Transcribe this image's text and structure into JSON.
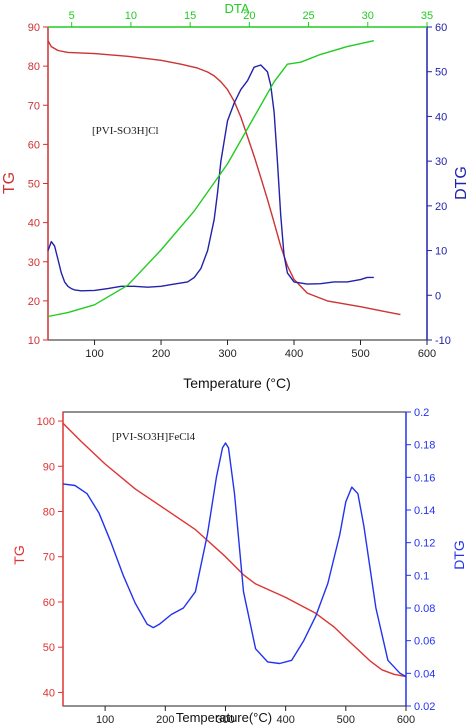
{
  "chart_data": [
    {
      "type": "line",
      "annotation": "[PVI-SO3H]Cl",
      "xlabel": "Temperature (°C)",
      "xlim": [
        30,
        600
      ],
      "xticks": [
        100,
        200,
        300,
        400,
        500,
        600
      ],
      "top_axis": {
        "label": "DTA",
        "color": "#22cc22",
        "lim": [
          3,
          35
        ],
        "ticks": [
          5,
          10,
          15,
          20,
          25,
          30,
          35
        ]
      },
      "left_axis": {
        "label": "TG",
        "color": "#cc3333",
        "lim": [
          10,
          90
        ],
        "ticks": [
          10,
          20,
          30,
          40,
          50,
          60,
          70,
          80,
          90
        ]
      },
      "right_axis": {
        "label": "DTG",
        "color": "#2222aa",
        "lim": [
          -10,
          60
        ],
        "ticks": [
          -10,
          0,
          10,
          20,
          30,
          40,
          50,
          60
        ]
      },
      "series": [
        {
          "axis": "left",
          "color": "#cc3333",
          "x": [
            30,
            35,
            45,
            60,
            100,
            150,
            200,
            230,
            255,
            270,
            280,
            290,
            300,
            310,
            320,
            330,
            340,
            350,
            360,
            370,
            380,
            390,
            400,
            420,
            450,
            500,
            530,
            560
          ],
          "y": [
            86.5,
            85,
            84,
            83.5,
            83.2,
            82.5,
            81.5,
            80.5,
            79.5,
            78.5,
            77.5,
            76,
            74,
            71,
            67,
            62,
            57,
            51.5,
            46,
            40,
            34,
            29,
            25.5,
            22,
            20,
            18.5,
            17.5,
            16.5
          ]
        },
        {
          "axis": "right",
          "color": "#2222aa",
          "x": [
            30,
            35,
            40,
            45,
            50,
            55,
            60,
            65,
            70,
            80,
            100,
            120,
            140,
            160,
            180,
            200,
            220,
            240,
            250,
            260,
            270,
            280,
            285,
            290,
            300,
            310,
            320,
            330,
            340,
            350,
            360,
            365,
            370,
            375,
            380,
            385,
            390,
            400,
            420,
            440,
            460,
            480,
            500,
            510,
            520
          ],
          "y": [
            10,
            12,
            11,
            8,
            5,
            3,
            2,
            1.5,
            1.2,
            1,
            1.1,
            1.5,
            2,
            2,
            1.8,
            2,
            2.5,
            3,
            4,
            6,
            10,
            17,
            23,
            30,
            39,
            43,
            46,
            48,
            51,
            51.5,
            50,
            47,
            41,
            30,
            18,
            9,
            5,
            3,
            2.5,
            2.6,
            3,
            3,
            3.5,
            4,
            4
          ]
        },
        {
          "axis": "top",
          "color": "#22cc22",
          "x": [
            30,
            60,
            100,
            150,
            200,
            250,
            300,
            340,
            370,
            390,
            410,
            440,
            480,
            520
          ],
          "y": [
            16,
            17,
            19,
            24,
            33,
            43,
            55,
            67,
            76,
            80.5,
            81,
            83,
            85,
            86.5
          ]
        }
      ]
    },
    {
      "type": "line",
      "annotation": "[PVI-SO3H]FeCl4",
      "xlabel": "Temperature(°C)",
      "xlim": [
        30,
        600
      ],
      "xticks": [
        100,
        200,
        300,
        400,
        500,
        600
      ],
      "left_axis": {
        "label": "TG",
        "color": "#e03333",
        "lim": [
          37,
          102
        ],
        "ticks": [
          40,
          50,
          60,
          70,
          80,
          90,
          100
        ]
      },
      "right_axis": {
        "label": "DTG",
        "color": "#2233ee",
        "lim": [
          0.02,
          0.2
        ],
        "ticks": [
          0.02,
          0.04,
          0.06,
          0.08,
          0.1,
          0.12,
          0.14,
          0.16,
          0.18,
          0.2
        ]
      },
      "series": [
        {
          "axis": "left",
          "color": "#e03333",
          "x": [
            30,
            60,
            100,
            150,
            200,
            250,
            300,
            330,
            350,
            400,
            450,
            480,
            500,
            520,
            540,
            560,
            580,
            600
          ],
          "y": [
            99.5,
            95.5,
            90.5,
            85,
            80.5,
            76,
            70,
            66,
            64,
            61,
            57.5,
            54.5,
            52,
            49.5,
            47,
            45,
            44,
            43.5
          ]
        },
        {
          "axis": "right",
          "color": "#2233ee",
          "x": [
            30,
            50,
            70,
            90,
            110,
            130,
            150,
            170,
            180,
            190,
            210,
            230,
            250,
            270,
            285,
            295,
            300,
            305,
            315,
            330,
            350,
            370,
            390,
            410,
            430,
            450,
            470,
            490,
            500,
            510,
            520,
            530,
            550,
            570,
            590,
            600
          ],
          "y": [
            0.156,
            0.155,
            0.15,
            0.138,
            0.12,
            0.1,
            0.083,
            0.07,
            0.068,
            0.07,
            0.076,
            0.08,
            0.09,
            0.125,
            0.16,
            0.178,
            0.181,
            0.178,
            0.15,
            0.09,
            0.055,
            0.047,
            0.046,
            0.048,
            0.06,
            0.075,
            0.095,
            0.125,
            0.145,
            0.154,
            0.15,
            0.13,
            0.08,
            0.048,
            0.04,
            0.038
          ]
        }
      ]
    }
  ]
}
